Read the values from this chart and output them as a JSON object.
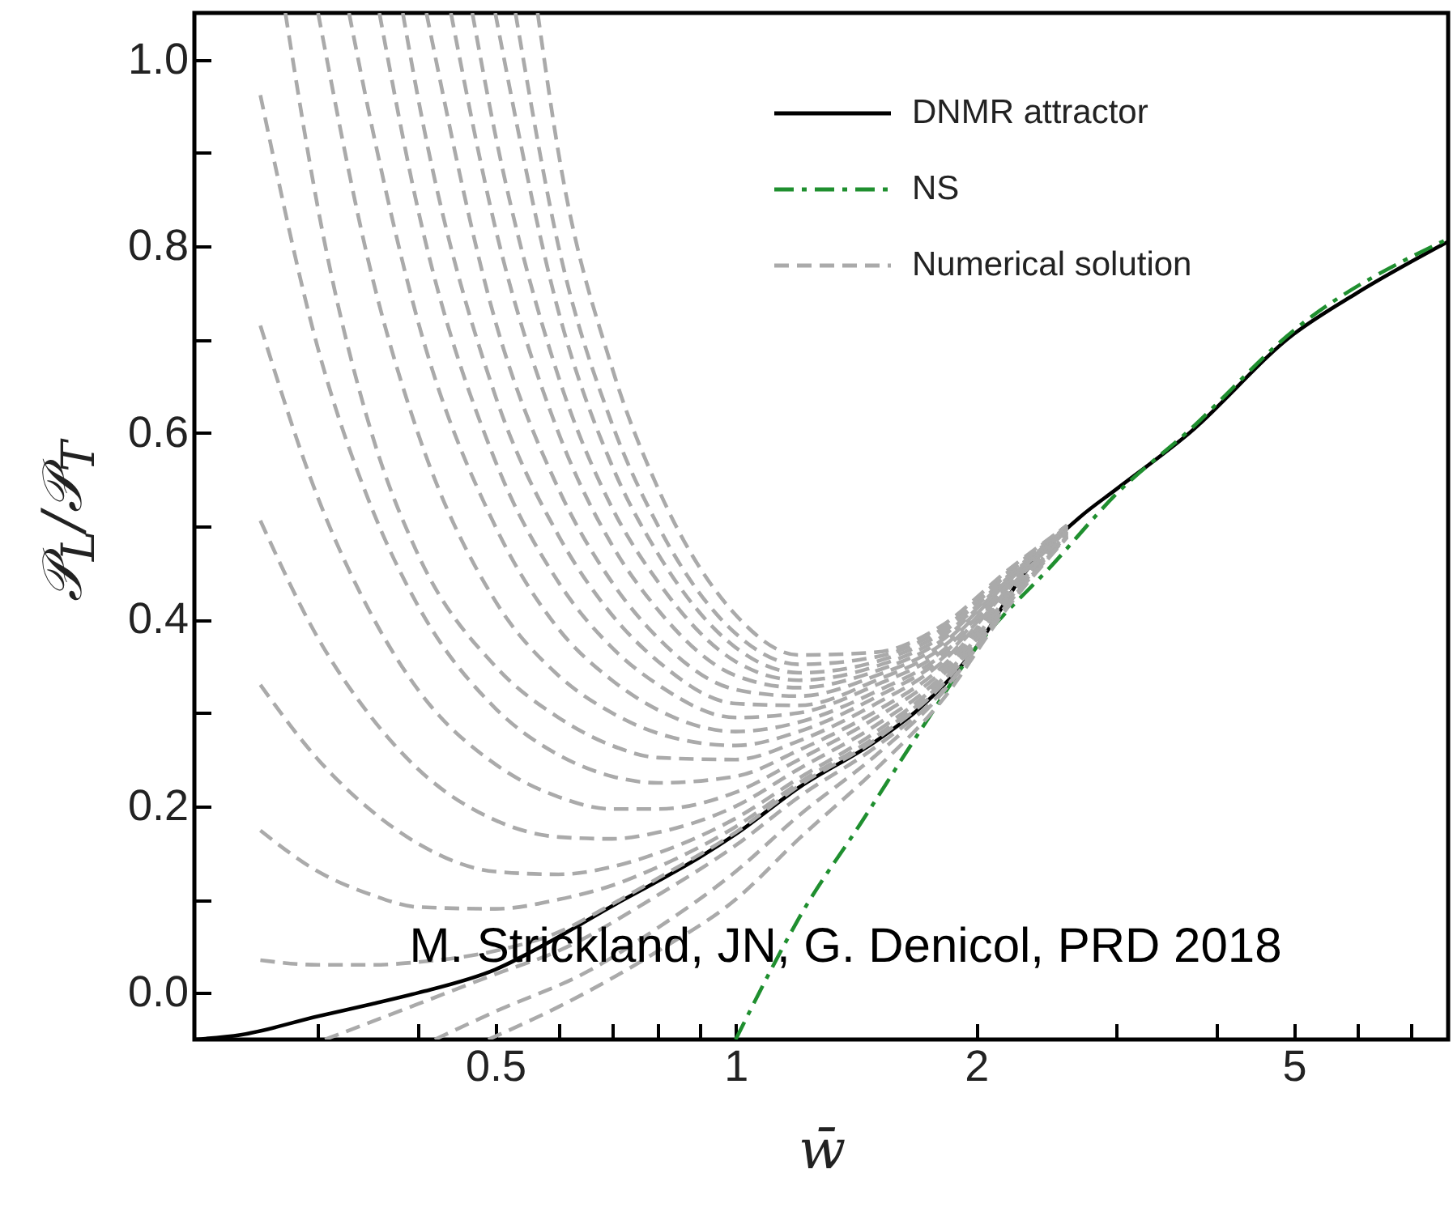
{
  "chart_data": {
    "type": "line",
    "xlabel": "w̄",
    "ylabel": "𝒫$_{L}$/𝒫$_{T}$",
    "log": "x",
    "legend": "top right",
    "xlim": [
      0.21,
      7.8
    ],
    "ylim": [
      -0.05,
      1.05
    ],
    "xticks": [
      {
        "value": 0.3,
        "label": null
      },
      {
        "value": 0.4,
        "label": null
      },
      0.5,
      {
        "value": 0.6,
        "label": null
      },
      {
        "value": 0.7,
        "label": null
      },
      {
        "value": 0.8,
        "label": null
      },
      {
        "value": 0.9,
        "label": null
      },
      1,
      2,
      {
        "value": 3,
        "label": null
      },
      {
        "value": 4,
        "label": null
      },
      5,
      {
        "value": 6,
        "label": null
      },
      {
        "value": 7,
        "label": null
      }
    ],
    "yticks": [
      {
        "value": 0,
        "label": "0.0"
      },
      {
        "value": 0.1,
        "label": null
      },
      {
        "value": 0.2,
        "label": "0.2"
      },
      {
        "value": 0.3,
        "label": null
      },
      {
        "value": 0.4,
        "label": "0.4"
      },
      {
        "value": 0.5,
        "label": null
      },
      {
        "value": 0.6,
        "label": "0.6"
      },
      {
        "value": 0.7,
        "label": null
      },
      {
        "value": 0.8,
        "label": "0.8"
      },
      {
        "value": 0.9,
        "label": null
      },
      {
        "value": 1,
        "label": "1.0"
      }
    ],
    "annotations": [
      "M. Strickland, JN, G. Denicol, PRD 2018"
    ],
    "series": [
      {
        "name": "DNMR attractor",
        "color": "#000000",
        "line_style": "solid",
        "x": [
          0.21,
          0.24,
          0.3,
          0.35,
          0.4,
          0.5,
          0.6,
          0.7,
          0.8,
          0.9,
          1.0,
          1.2,
          1.5,
          1.7,
          2.0,
          2.3,
          2.7,
          3.0,
          3.7,
          5.0,
          6.0,
          7.8
        ],
        "values": [
          -0.05,
          -0.045,
          -0.025,
          -0.012,
          0.0,
          0.025,
          0.06,
          0.093,
          0.12,
          0.145,
          0.17,
          0.22,
          0.27,
          0.305,
          0.37,
          0.45,
          0.51,
          0.54,
          0.6,
          0.706,
          0.75,
          0.805
        ]
      },
      {
        "name": "NS",
        "color": "#1f8f2f",
        "line_style": "dashdot",
        "x": [
          1.0,
          1.1,
          1.2,
          1.44,
          1.7,
          2.0,
          2.5,
          3.0,
          3.7,
          5.0,
          7.8
        ],
        "values": [
          -0.05,
          0.02,
          0.08,
          0.184,
          0.28,
          0.37,
          0.46,
          0.535,
          0.603,
          0.71,
          0.808
        ]
      },
      {
        "name": "Numerical solution",
        "color": "#aaaaaa",
        "line_style": "dashed",
        "x": [
          0.254,
          0.3,
          0.35,
          0.4,
          0.5,
          0.6,
          0.7,
          0.8,
          1.0,
          1.2,
          1.5,
          1.8,
          2.2,
          2.6
        ],
        "values": [
          0.035,
          0.03,
          0.03,
          0.033,
          0.045,
          0.065,
          0.095,
          0.123,
          0.172,
          0.222,
          0.272,
          0.327,
          0.422,
          0.49
        ]
      },
      {
        "color": "#aaaaaa",
        "line_style": "dashed",
        "x": [
          0.254,
          0.3,
          0.35,
          0.4,
          0.5,
          0.6,
          0.7,
          0.8,
          1.0,
          1.2,
          1.5,
          1.8,
          2.2,
          2.6
        ],
        "values": [
          0.174,
          0.13,
          0.105,
          0.092,
          0.09,
          0.1,
          0.115,
          0.135,
          0.178,
          0.225,
          0.275,
          0.33,
          0.424,
          0.491
        ]
      },
      {
        "color": "#aaaaaa",
        "line_style": "dashed",
        "x": [
          0.254,
          0.3,
          0.35,
          0.4,
          0.5,
          0.6,
          0.7,
          0.8,
          1.0,
          1.2,
          1.5,
          1.8,
          2.2,
          2.6
        ],
        "values": [
          0.33,
          0.25,
          0.195,
          0.16,
          0.13,
          0.127,
          0.135,
          0.15,
          0.187,
          0.23,
          0.28,
          0.333,
          0.426,
          0.492
        ]
      },
      {
        "color": "#aaaaaa",
        "line_style": "dashed",
        "x": [
          0.254,
          0.3,
          0.35,
          0.4,
          0.5,
          0.6,
          0.7,
          0.8,
          1.0,
          1.2,
          1.5,
          1.8,
          2.2,
          2.6
        ],
        "values": [
          0.506,
          0.38,
          0.295,
          0.24,
          0.185,
          0.167,
          0.165,
          0.172,
          0.2,
          0.24,
          0.287,
          0.337,
          0.428,
          0.493
        ]
      },
      {
        "color": "#aaaaaa",
        "line_style": "dashed",
        "x": [
          0.254,
          0.3,
          0.35,
          0.4,
          0.5,
          0.6,
          0.7,
          0.8,
          1.0,
          1.2,
          1.5,
          1.8,
          2.2,
          2.6
        ],
        "values": [
          0.715,
          0.53,
          0.405,
          0.325,
          0.245,
          0.21,
          0.197,
          0.197,
          0.215,
          0.25,
          0.295,
          0.342,
          0.43,
          0.494
        ]
      },
      {
        "color": "#aaaaaa",
        "line_style": "dashed",
        "x": [
          0.254,
          0.3,
          0.35,
          0.4,
          0.5,
          0.6,
          0.7,
          0.8,
          1.0,
          1.2,
          1.5,
          1.8,
          2.2,
          2.6
        ],
        "values": [
          0.962,
          0.69,
          0.52,
          0.415,
          0.305,
          0.255,
          0.232,
          0.225,
          0.232,
          0.26,
          0.302,
          0.347,
          0.432,
          0.495
        ]
      },
      {
        "color": "#aaaaaa",
        "line_style": "dashed",
        "x": [
          0.273,
          0.3,
          0.35,
          0.4,
          0.5,
          0.6,
          0.7,
          0.8,
          1.0,
          1.2,
          1.5,
          1.8,
          2.2,
          2.6
        ],
        "values": [
          1.05,
          0.84,
          0.6,
          0.47,
          0.35,
          0.295,
          0.265,
          0.252,
          0.25,
          0.27,
          0.31,
          0.352,
          0.434,
          0.496
        ]
      },
      {
        "color": "#aaaaaa",
        "line_style": "dashed",
        "x": [
          0.3,
          0.35,
          0.4,
          0.5,
          0.6,
          0.7,
          0.8,
          1.0,
          1.2,
          1.5,
          1.8,
          2.2,
          2.6
        ],
        "values": [
          1.05,
          0.77,
          0.6,
          0.42,
          0.34,
          0.3,
          0.278,
          0.265,
          0.28,
          0.317,
          0.356,
          0.436,
          0.497
        ]
      },
      {
        "color": "#aaaaaa",
        "line_style": "dashed",
        "x": [
          0.328,
          0.35,
          0.4,
          0.5,
          0.6,
          0.7,
          0.8,
          1.0,
          1.2,
          1.5,
          1.8,
          2.2,
          2.6
        ],
        "values": [
          1.05,
          0.93,
          0.72,
          0.5,
          0.39,
          0.335,
          0.303,
          0.28,
          0.29,
          0.323,
          0.36,
          0.438,
          0.497
        ]
      },
      {
        "color": "#aaaaaa",
        "line_style": "dashed",
        "x": [
          0.358,
          0.4,
          0.5,
          0.6,
          0.7,
          0.8,
          1.0,
          1.2,
          1.5,
          1.8,
          2.2,
          2.6
        ],
        "values": [
          1.05,
          0.84,
          0.57,
          0.44,
          0.37,
          0.33,
          0.295,
          0.3,
          0.33,
          0.364,
          0.44,
          0.498
        ]
      },
      {
        "color": "#aaaaaa",
        "line_style": "dashed",
        "x": [
          0.383,
          0.4,
          0.5,
          0.6,
          0.7,
          0.8,
          1.0,
          1.2,
          1.5,
          1.8,
          2.2,
          2.6
        ],
        "values": [
          1.05,
          0.96,
          0.64,
          0.49,
          0.405,
          0.355,
          0.31,
          0.308,
          0.335,
          0.368,
          0.442,
          0.498
        ]
      },
      {
        "color": "#aaaaaa",
        "line_style": "dashed",
        "x": [
          0.41,
          0.5,
          0.6,
          0.7,
          0.8,
          1.0,
          1.2,
          1.5,
          1.8,
          2.2,
          2.6
        ],
        "values": [
          1.05,
          0.72,
          0.54,
          0.44,
          0.38,
          0.325,
          0.318,
          0.34,
          0.372,
          0.444,
          0.499
        ]
      },
      {
        "color": "#aaaaaa",
        "line_style": "dashed",
        "x": [
          0.44,
          0.5,
          0.6,
          0.7,
          0.8,
          1.0,
          1.2,
          1.5,
          1.8,
          2.2,
          2.6
        ],
        "values": [
          1.05,
          0.82,
          0.6,
          0.48,
          0.41,
          0.34,
          0.327,
          0.345,
          0.376,
          0.446,
          0.499
        ]
      },
      {
        "color": "#aaaaaa",
        "line_style": "dashed",
        "x": [
          0.468,
          0.5,
          0.6,
          0.7,
          0.8,
          1.0,
          1.2,
          1.5,
          1.8,
          2.2,
          2.6
        ],
        "values": [
          1.05,
          0.92,
          0.66,
          0.52,
          0.44,
          0.355,
          0.335,
          0.35,
          0.38,
          0.448,
          0.5
        ]
      },
      {
        "color": "#aaaaaa",
        "line_style": "dashed",
        "x": [
          0.5,
          0.6,
          0.7,
          0.8,
          1.0,
          1.2,
          1.5,
          1.8,
          2.2,
          2.6
        ],
        "values": [
          1.05,
          0.73,
          0.565,
          0.47,
          0.37,
          0.343,
          0.355,
          0.384,
          0.45,
          0.5
        ]
      },
      {
        "color": "#aaaaaa",
        "line_style": "dashed",
        "x": [
          0.53,
          0.6,
          0.7,
          0.8,
          1.0,
          1.2,
          1.5,
          1.8,
          2.2,
          2.6
        ],
        "values": [
          1.05,
          0.8,
          0.61,
          0.5,
          0.385,
          0.352,
          0.36,
          0.388,
          0.452,
          0.501
        ]
      },
      {
        "color": "#aaaaaa",
        "line_style": "dashed",
        "x": [
          0.565,
          0.6,
          0.7,
          0.8,
          1.0,
          1.2,
          1.5,
          1.8,
          2.2,
          2.6
        ],
        "values": [
          1.05,
          0.9,
          0.67,
          0.54,
          0.405,
          0.362,
          0.365,
          0.392,
          0.454,
          0.501
        ]
      },
      {
        "color": "#aaaaaa",
        "line_style": "dashed",
        "x": [
          0.306,
          0.4,
          0.5,
          0.6,
          0.8,
          1.0,
          1.2,
          1.5,
          1.8,
          2.2,
          2.6
        ],
        "values": [
          -0.05,
          -0.012,
          0.02,
          0.045,
          0.105,
          0.158,
          0.21,
          0.264,
          0.32,
          0.419,
          0.489
        ]
      },
      {
        "color": "#aaaaaa",
        "line_style": "dashed",
        "x": [
          0.42,
          0.5,
          0.653,
          0.8,
          1.0,
          1.2,
          1.5,
          1.8,
          2.2,
          2.6
        ],
        "values": [
          -0.05,
          -0.02,
          0.023,
          0.07,
          0.13,
          0.19,
          0.255,
          0.318,
          0.418,
          0.489
        ]
      },
      {
        "color": "#aaaaaa",
        "line_style": "dashed",
        "x": [
          0.49,
          0.6,
          0.8,
          1.0,
          1.2,
          1.5,
          1.8,
          2.2,
          2.6
        ],
        "values": [
          -0.05,
          -0.015,
          0.045,
          0.1,
          0.165,
          0.24,
          0.31,
          0.415,
          0.488
        ]
      }
    ]
  }
}
